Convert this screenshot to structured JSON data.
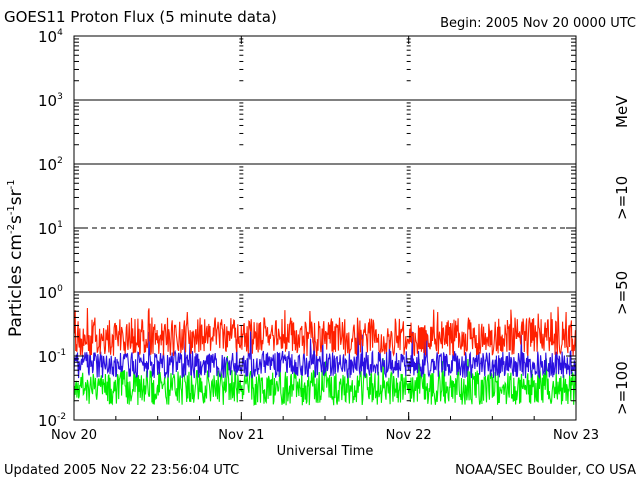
{
  "chart_data": {
    "type": "line",
    "title": "GOES11 Proton Flux (5 minute data)",
    "begin_label": "Begin: 2005 Nov 20 0000 UTC",
    "xlabel": "Universal Time",
    "ylabel_main": "Particles cm",
    "ylabel_exp1": "-2",
    "ylabel_mid1": "s",
    "ylabel_exp2": "-1",
    "ylabel_mid2": "sr",
    "ylabel_exp3": "-1",
    "scale": "log",
    "ylim": [
      0.01,
      10000
    ],
    "xlim_days": [
      0,
      3
    ],
    "x_ticks": [
      {
        "day": 0,
        "label": "Nov 20"
      },
      {
        "day": 1,
        "label": "Nov 21"
      },
      {
        "day": 2,
        "label": "Nov 22"
      },
      {
        "day": 3,
        "label": "Nov 23"
      }
    ],
    "y_ticks": [
      {
        "exp": -2,
        "base": "10",
        "sup": "-2"
      },
      {
        "exp": -1,
        "base": "10",
        "sup": "-1"
      },
      {
        "exp": 0,
        "base": "10",
        "sup": "0"
      },
      {
        "exp": 1,
        "base": "10",
        "sup": "1"
      },
      {
        "exp": 2,
        "base": "10",
        "sup": "2"
      },
      {
        "exp": 3,
        "base": "10",
        "sup": "3"
      },
      {
        "exp": 4,
        "base": "10",
        "sup": "4"
      }
    ],
    "threshold_lines": [
      {
        "value": 1,
        "style": "solid"
      },
      {
        "value": 10,
        "style": "dashed"
      },
      {
        "value": 100,
        "style": "solid"
      },
      {
        "value": 1000,
        "style": "solid"
      }
    ],
    "series": [
      {
        "name": ">=10",
        "color": "#ff2000",
        "typical_range": [
          0.1,
          0.4
        ],
        "peak": 0.6
      },
      {
        "name": ">=50",
        "color": "#2a10e0",
        "typical_range": [
          0.045,
          0.12
        ],
        "peak": 0.25
      },
      {
        "name": ">=100",
        "color": "#00ee00",
        "typical_range": [
          0.017,
          0.06
        ],
        "peak": 0.1
      }
    ],
    "unit_label": "MeV",
    "grid": false
  },
  "footer": {
    "updated": "Updated 2005 Nov 22 23:56:04 UTC",
    "source": "NOAA/SEC Boulder, CO USA"
  }
}
